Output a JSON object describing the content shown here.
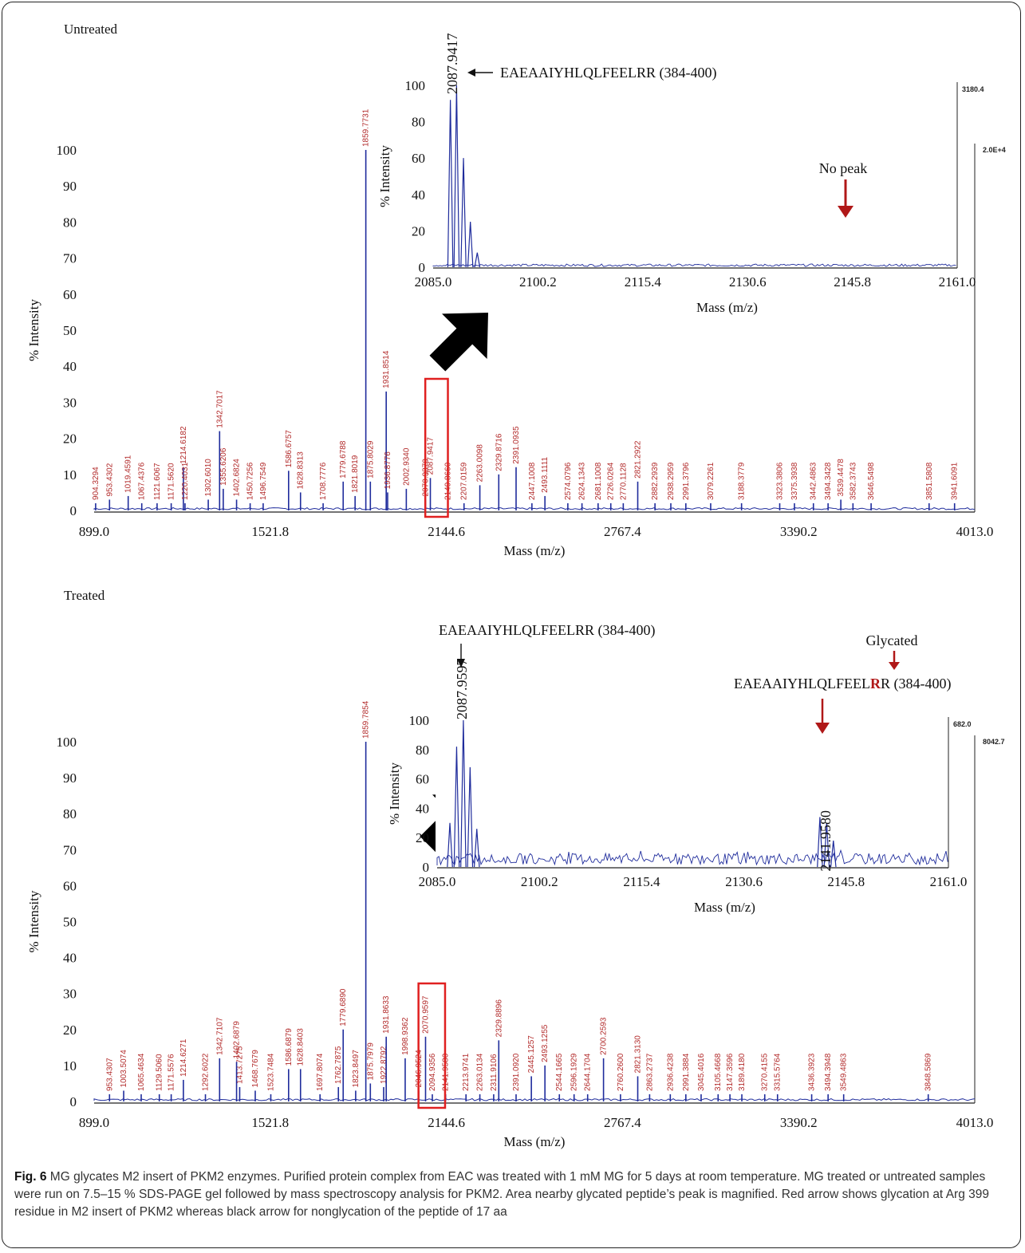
{
  "chart_data": [
    {
      "type": "line",
      "panel_label": "Untreated",
      "xlabel": "Mass (m/z)",
      "ylabel": "% Intensity",
      "xlim": [
        899.0,
        4013.0
      ],
      "ylim": [
        0,
        100
      ],
      "xticks": [
        "899.0",
        "1521.8",
        "2144.6",
        "2767.4",
        "3390.2",
        "4013.0"
      ],
      "yticks": [
        "0",
        "10",
        "20",
        "30",
        "40",
        "50",
        "60",
        "70",
        "80",
        "90",
        "100"
      ],
      "corner_label": "2.0E+4",
      "peaks": [
        {
          "x": 904.3294,
          "y": 2,
          "label": "904.3294"
        },
        {
          "x": 953.4302,
          "y": 3,
          "label": "953.4302"
        },
        {
          "x": 1019.4591,
          "y": 4,
          "label": "1019.4591"
        },
        {
          "x": 1067.4376,
          "y": 2,
          "label": "1067.4376"
        },
        {
          "x": 1121.6067,
          "y": 2,
          "label": "1121.6067"
        },
        {
          "x": 1171.562,
          "y": 2,
          "label": "1171.5620"
        },
        {
          "x": 1214.6182,
          "y": 12,
          "label": "1214.6182"
        },
        {
          "x": 1220.4031,
          "y": 2,
          "label": "1220.4031"
        },
        {
          "x": 1302.601,
          "y": 3,
          "label": "1302.6010"
        },
        {
          "x": 1342.7017,
          "y": 22,
          "label": "1342.7017"
        },
        {
          "x": 1355.6206,
          "y": 6,
          "label": "1355.6206"
        },
        {
          "x": 1402.6824,
          "y": 3,
          "label": "1402.6824"
        },
        {
          "x": 1450.7256,
          "y": 2,
          "label": "1450.7256"
        },
        {
          "x": 1496.7549,
          "y": 2,
          "label": "1496.7549"
        },
        {
          "x": 1586.6757,
          "y": 11,
          "label": "1586.6757"
        },
        {
          "x": 1628.8313,
          "y": 5,
          "label": "1628.8313"
        },
        {
          "x": 1708.7776,
          "y": 2,
          "label": "1708.7776"
        },
        {
          "x": 1779.6788,
          "y": 8,
          "label": "1779.6788"
        },
        {
          "x": 1821.8019,
          "y": 4,
          "label": "1821.8019"
        },
        {
          "x": 1859.7731,
          "y": 100,
          "label": "1859.7731"
        },
        {
          "x": 1875.8029,
          "y": 8,
          "label": "1875.8029"
        },
        {
          "x": 1931.8514,
          "y": 33,
          "label": "1931.8514"
        },
        {
          "x": 1936.8776,
          "y": 5,
          "label": "1936.8776"
        },
        {
          "x": 2002.934,
          "y": 6,
          "label": "2002.9340"
        },
        {
          "x": 2070.937,
          "y": 3,
          "label": "2070.9370"
        },
        {
          "x": 2087.9417,
          "y": 9,
          "label": "2087.9417"
        },
        {
          "x": 2149.866,
          "y": 2,
          "label": "2149.8660"
        },
        {
          "x": 2207.0159,
          "y": 2,
          "label": "2207.0159"
        },
        {
          "x": 2263.0098,
          "y": 7,
          "label": "2263.0098"
        },
        {
          "x": 2329.8716,
          "y": 10,
          "label": "2329.8716"
        },
        {
          "x": 2391.0935,
          "y": 12,
          "label": "2391.0935"
        },
        {
          "x": 2447.1008,
          "y": 2,
          "label": "2447.1008"
        },
        {
          "x": 2493.1111,
          "y": 4,
          "label": "2493.1111"
        },
        {
          "x": 2574.0796,
          "y": 2,
          "label": "2574.0796"
        },
        {
          "x": 2624.1343,
          "y": 2,
          "label": "2624.1343"
        },
        {
          "x": 2681.1008,
          "y": 2,
          "label": "2681.1008"
        },
        {
          "x": 2726.0264,
          "y": 2,
          "label": "2726.0264"
        },
        {
          "x": 2770.1128,
          "y": 2,
          "label": "2770.1128"
        },
        {
          "x": 2821.2922,
          "y": 8,
          "label": "2821.2922"
        },
        {
          "x": 2882.2939,
          "y": 2,
          "label": "2882.2939"
        },
        {
          "x": 2938.2959,
          "y": 2,
          "label": "2938.2959"
        },
        {
          "x": 2991.3796,
          "y": 2,
          "label": "2991.3796"
        },
        {
          "x": 3079.2261,
          "y": 2,
          "label": "3079.2261"
        },
        {
          "x": 3188.3779,
          "y": 2,
          "label": "3188.3779"
        },
        {
          "x": 3323.3806,
          "y": 2,
          "label": "3323.3806"
        },
        {
          "x": 3375.3938,
          "y": 2,
          "label": "3375.3938"
        },
        {
          "x": 3442.4863,
          "y": 2,
          "label": "3442.4863"
        },
        {
          "x": 3494.3428,
          "y": 2,
          "label": "3494.3428"
        },
        {
          "x": 3539.4478,
          "y": 3,
          "label": "3539.4478"
        },
        {
          "x": 3582.3743,
          "y": 2,
          "label": "3582.3743"
        },
        {
          "x": 3646.5498,
          "y": 2,
          "label": "3646.5498"
        },
        {
          "x": 3851.5808,
          "y": 2,
          "label": "3851.5808"
        },
        {
          "x": 3941.6091,
          "y": 2,
          "label": "3941.6091"
        }
      ],
      "inset": {
        "xlabel": "Mass (m/z)",
        "ylabel": "% Intensity",
        "xlim": [
          2085.0,
          2161.0
        ],
        "ylim": [
          0,
          100
        ],
        "xticks": [
          "2085.0",
          "2100.2",
          "2115.4",
          "2130.6",
          "2145.8",
          "2161.0"
        ],
        "yticks": [
          "0",
          "20",
          "40",
          "60",
          "80",
          "100"
        ],
        "corner_label": "3180.4",
        "peaks": [
          {
            "x": 2087.5,
            "y": 92
          },
          {
            "x": 2088.4,
            "y": 100
          },
          {
            "x": 2089.4,
            "y": 60
          },
          {
            "x": 2090.4,
            "y": 25
          },
          {
            "x": 2091.4,
            "y": 8
          }
        ],
        "peak_label": "2087.9417",
        "peak_annotation": "EAEAAIYHLQLFEELRR (384-400)",
        "no_peak_label": "No peak"
      },
      "box_x_range": [
        2070.0,
        2150.0
      ]
    },
    {
      "type": "line",
      "panel_label": "Treated",
      "xlabel": "Mass (m/z)",
      "ylabel": "% Intensity",
      "xlim": [
        899.0,
        4013.0
      ],
      "ylim": [
        0,
        100
      ],
      "xticks": [
        "899.0",
        "1521.8",
        "2144.6",
        "2767.4",
        "3390.2",
        "4013.0"
      ],
      "yticks": [
        "0",
        "10",
        "20",
        "30",
        "40",
        "50",
        "60",
        "70",
        "80",
        "90",
        "100"
      ],
      "corner_label": "8042.7",
      "peaks": [
        {
          "x": 953.4307,
          "y": 2,
          "label": "953.4307"
        },
        {
          "x": 1003.5074,
          "y": 3,
          "label": "1003.5074"
        },
        {
          "x": 1065.4634,
          "y": 2,
          "label": "1065.4634"
        },
        {
          "x": 1129.506,
          "y": 2,
          "label": "1129.5060"
        },
        {
          "x": 1171.5576,
          "y": 2,
          "label": "1171.5576"
        },
        {
          "x": 1214.6271,
          "y": 6,
          "label": "1214.6271"
        },
        {
          "x": 1292.6022,
          "y": 2,
          "label": "1292.6022"
        },
        {
          "x": 1342.7107,
          "y": 12,
          "label": "1342.7107"
        },
        {
          "x": 1413.7275,
          "y": 4,
          "label": "1413.7275"
        },
        {
          "x": 1402.6879,
          "y": 11,
          "label": "1402.6879"
        },
        {
          "x": 1468.7679,
          "y": 3,
          "label": "1468.7679"
        },
        {
          "x": 1523.7484,
          "y": 2,
          "label": "1523.7484"
        },
        {
          "x": 1586.6879,
          "y": 9,
          "label": "1586.6879"
        },
        {
          "x": 1628.8403,
          "y": 9,
          "label": "1628.8403"
        },
        {
          "x": 1697.8074,
          "y": 2,
          "label": "1697.8074"
        },
        {
          "x": 1762.7875,
          "y": 4,
          "label": "1762.7875"
        },
        {
          "x": 1779.689,
          "y": 20,
          "label": "1779.6890"
        },
        {
          "x": 1823.8497,
          "y": 3,
          "label": "1823.8497"
        },
        {
          "x": 1859.7854,
          "y": 100,
          "label": "1859.7854"
        },
        {
          "x": 1875.7979,
          "y": 5,
          "label": "1875.7979"
        },
        {
          "x": 1922.8792,
          "y": 4,
          "label": "1922.8792"
        },
        {
          "x": 1931.8633,
          "y": 18,
          "label": "1931.8633"
        },
        {
          "x": 1998.9362,
          "y": 12,
          "label": "1998.9362"
        },
        {
          "x": 2046.9524,
          "y": 3,
          "label": "2046.9524"
        },
        {
          "x": 2070.9597,
          "y": 18,
          "label": "2070.9597"
        },
        {
          "x": 2094.9356,
          "y": 2,
          "label": "2094.9356"
        },
        {
          "x": 2141.958,
          "y": 2,
          "label": "2141.9580"
        },
        {
          "x": 2213.9741,
          "y": 2,
          "label": "2213.9741"
        },
        {
          "x": 2263.0134,
          "y": 2,
          "label": "2263.0134"
        },
        {
          "x": 2311.9106,
          "y": 2,
          "label": "2311.9106"
        },
        {
          "x": 2329.8896,
          "y": 17,
          "label": "2329.8896"
        },
        {
          "x": 2391.092,
          "y": 2,
          "label": "2391.0920"
        },
        {
          "x": 2445.1257,
          "y": 7,
          "label": "2445.1257"
        },
        {
          "x": 2493.1255,
          "y": 10,
          "label": "2493.1255"
        },
        {
          "x": 2544.1665,
          "y": 2,
          "label": "2544.1665"
        },
        {
          "x": 2596.1929,
          "y": 2,
          "label": "2596.1929"
        },
        {
          "x": 2644.1704,
          "y": 2,
          "label": "2644.1704"
        },
        {
          "x": 2700.2593,
          "y": 12,
          "label": "2700.2593"
        },
        {
          "x": 2760.26,
          "y": 2,
          "label": "2760.2600"
        },
        {
          "x": 2821.313,
          "y": 7,
          "label": "2821.3130"
        },
        {
          "x": 2863.2737,
          "y": 2,
          "label": "2863.2737"
        },
        {
          "x": 2936.4238,
          "y": 2,
          "label": "2936.4238"
        },
        {
          "x": 2991.3884,
          "y": 2,
          "label": "2991.3884"
        },
        {
          "x": 3045.4016,
          "y": 2,
          "label": "3045.4016"
        },
        {
          "x": 3105.4668,
          "y": 2,
          "label": "3105.4668"
        },
        {
          "x": 3147.3596,
          "y": 2,
          "label": "3147.3596"
        },
        {
          "x": 3189.418,
          "y": 2,
          "label": "3189.4180"
        },
        {
          "x": 3270.4155,
          "y": 2,
          "label": "3270.4155"
        },
        {
          "x": 3315.5764,
          "y": 2,
          "label": "3315.5764"
        },
        {
          "x": 3436.3923,
          "y": 2,
          "label": "3436.3923"
        },
        {
          "x": 3494.3948,
          "y": 2,
          "label": "3494.3948"
        },
        {
          "x": 3549.4863,
          "y": 2,
          "label": "3549.4863"
        },
        {
          "x": 3848.5869,
          "y": 2,
          "label": "3848.5869"
        }
      ],
      "inset": {
        "xlabel": "Mass (m/z)",
        "ylabel": "% Intensity",
        "xlim": [
          2085.0,
          2161.0
        ],
        "ylim": [
          0,
          100
        ],
        "xticks": [
          "2085.0",
          "2100.2",
          "2115.4",
          "2130.6",
          "2145.8",
          "2161.0"
        ],
        "yticks": [
          "0",
          "20",
          "40",
          "60",
          "80",
          "100"
        ],
        "corner_label": "682.0",
        "peaks": [
          {
            "x": 2087.9,
            "y": 82
          },
          {
            "x": 2088.9,
            "y": 100
          },
          {
            "x": 2089.9,
            "y": 68
          },
          {
            "x": 2086.9,
            "y": 30
          },
          {
            "x": 2090.9,
            "y": 26
          },
          {
            "x": 2141.9,
            "y": 34
          },
          {
            "x": 2142.9,
            "y": 30
          },
          {
            "x": 2143.9,
            "y": 18
          }
        ],
        "peak_label": "2087.9597",
        "glycated_peak_label": "2141.9580",
        "peak_annotation": "EAEAAIYHLQLFEELRR (384-400)",
        "glycated_annotation_prefix": "EAEAAIYHLQLFEEL",
        "glycated_annotation_residue": "R",
        "glycated_annotation_suffix": "R (384-400)",
        "glycated_label": "Glycated"
      },
      "box_x_range": [
        2046.0,
        2140.0
      ]
    }
  ],
  "colors": {
    "spectrum": "#1f2c9c",
    "peak_label": "#b22a2a",
    "red_arrow": "#b01818",
    "box": "#e02020",
    "big_arrow": "#000000"
  },
  "caption": {
    "fig_label": "Fig. 6",
    "text": "MG glycates M2 insert of PKM2 enzymes. Purified protein complex from EAC was treated with 1 mM MG for 5 days at room temperature. MG treated or untreated samples were run on 7.5–15 % SDS-PAGE gel followed by mass spectroscopy analysis for PKM2. Area nearby glycated peptide’s peak is magnified. Red arrow shows glycation at Arg 399 residue in M2 insert of PKM2 whereas black arrow for nonglycation of the peptide of 17 aa"
  }
}
